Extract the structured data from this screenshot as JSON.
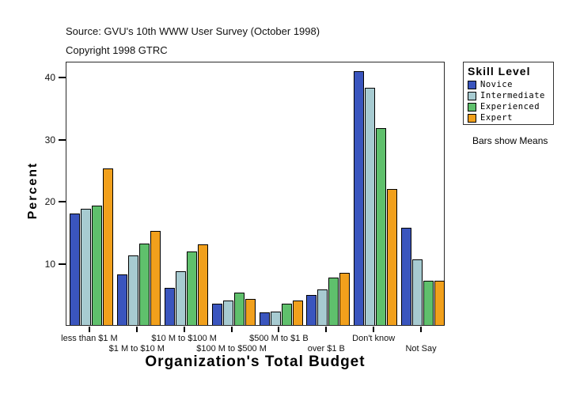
{
  "header": {
    "source_line": "Source: GVU's 10th WWW User Survey (October 1998)",
    "copyright_line": "Copyright 1998 GTRC"
  },
  "legend": {
    "title": "Skill Level",
    "note": "Bars show Means"
  },
  "chart_data": {
    "type": "bar",
    "title": "Source: GVU's 10th WWW User Survey (October 1998)",
    "subtitle": "Copyright 1998 GTRC",
    "xlabel": "Organization's Total Budget",
    "ylabel": "Percent",
    "categories": [
      "less than $1 M",
      "$1 M to $10 M",
      "$10 M to $100 M",
      "$100 M to $500 M",
      "$500 M to $1 B",
      "over $1 B",
      "Don't know",
      "Not Say"
    ],
    "series": [
      {
        "name": "Novice",
        "color": "#3A55BE",
        "values": [
          18.0,
          8.2,
          6.0,
          3.4,
          2.0,
          4.8,
          41.0,
          15.7
        ]
      },
      {
        "name": "Intermediate",
        "color": "#A7CBD1",
        "values": [
          18.8,
          11.2,
          8.7,
          4.0,
          2.2,
          5.7,
          38.2,
          10.6
        ]
      },
      {
        "name": "Experienced",
        "color": "#5FC06C",
        "values": [
          19.2,
          13.1,
          11.9,
          5.2,
          3.4,
          7.7,
          31.8,
          7.2
        ]
      },
      {
        "name": "Expert",
        "color": "#F1A01C",
        "values": [
          25.2,
          15.2,
          13.0,
          4.2,
          4.0,
          8.4,
          22.0,
          7.2
        ]
      }
    ],
    "yticks": [
      10,
      20,
      30,
      40
    ],
    "ylim": [
      0,
      42.6
    ],
    "grid": false,
    "legend_title": "Skill Level",
    "legend_position": "outside-top-right",
    "annotation": "Bars show Means"
  }
}
